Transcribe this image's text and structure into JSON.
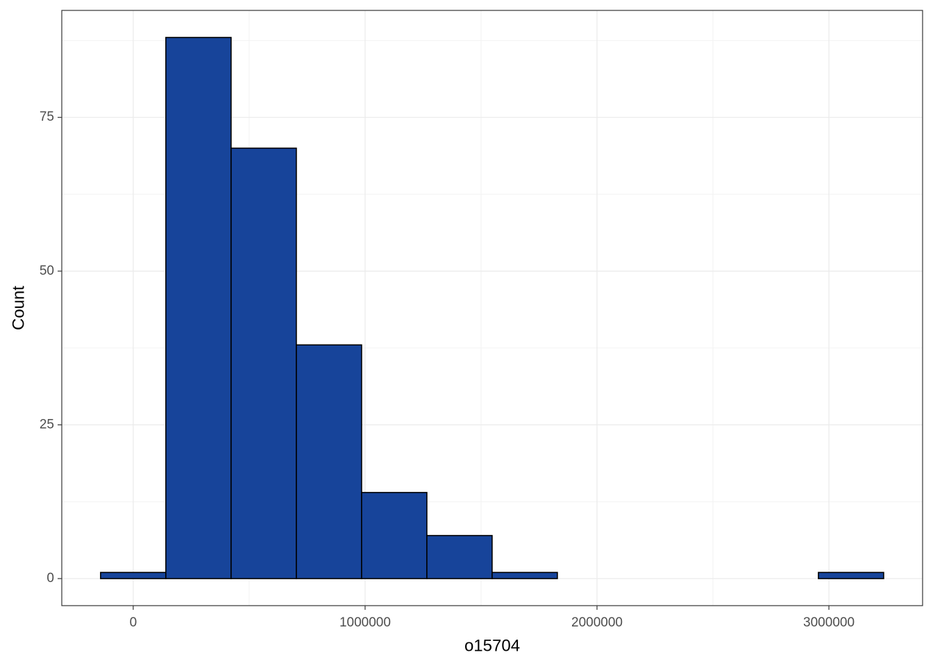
{
  "chart_data": {
    "type": "histogram",
    "x_label": "o15704",
    "y_label": "Count",
    "bins": [
      -140700,
      140700,
      422100,
      703500,
      984900,
      1266300,
      1547700,
      1829100,
      2110500,
      2391900,
      2673300,
      2954700,
      3236100
    ],
    "values": [
      1,
      88,
      70,
      38,
      14,
      7,
      1,
      0,
      0,
      0,
      0,
      1
    ],
    "color": "#17449a",
    "xlim": [
      -308000,
      3404000
    ],
    "xticks": [
      0,
      1000000,
      2000000,
      3000000
    ],
    "ylim": [
      -4.4,
      92.4
    ],
    "yticks": [
      0,
      25,
      50,
      75
    ],
    "grid": true
  }
}
